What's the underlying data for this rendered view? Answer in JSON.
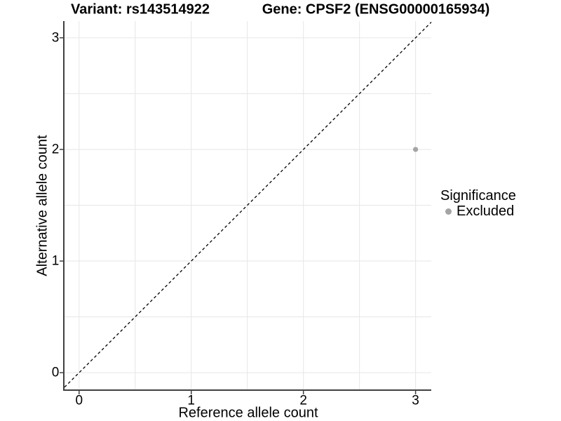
{
  "header": {
    "variant_title": "Variant: rs143514922",
    "gene_title": "Gene: CPSF2 (ENSG00000165934)"
  },
  "chart_data": {
    "type": "scatter",
    "xlabel": "Reference allele count",
    "ylabel": "Alternative allele count",
    "xlim": [
      -0.13,
      3.14
    ],
    "ylim": [
      -0.15,
      3.15
    ],
    "x_ticks": [
      0,
      1,
      2,
      3
    ],
    "y_ticks": [
      0,
      1,
      2,
      3
    ],
    "grid": {
      "min": 0,
      "max": 3,
      "step": 0.5,
      "color": "#e6e6e6"
    },
    "identity_line": {
      "style": "dashed",
      "color": "#000000",
      "slope": 1,
      "intercept": 0
    },
    "series": [
      {
        "name": "Excluded",
        "color": "#a4a4a4",
        "points": [
          {
            "x": 3,
            "y": 2
          }
        ]
      }
    ],
    "legend": {
      "title": "Significance",
      "position": "right",
      "items": [
        {
          "label": "Excluded",
          "color": "#a4a4a4"
        }
      ]
    },
    "axis_color": "#404040",
    "background": "#ffffff"
  }
}
